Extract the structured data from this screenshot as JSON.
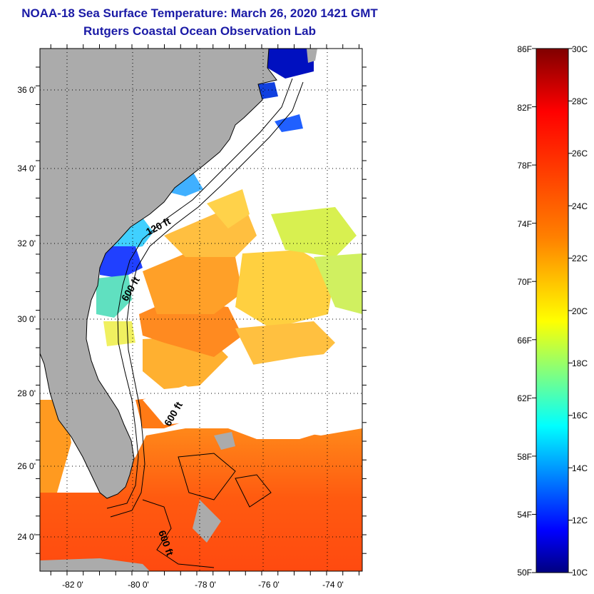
{
  "header": {
    "title": "NOAA-18 Sea Surface Temperature:  March 26, 2020 1421 GMT",
    "subtitle": "Rutgers Coastal Ocean Observation Lab"
  },
  "map": {
    "lat_labels": [
      "36 0'",
      "34 0'",
      "32 0'",
      "30 0'",
      "28 0'",
      "26 0'",
      "24 0'"
    ],
    "lon_labels": [
      "-82 0'",
      "-80 0'",
      "-78 0'",
      "-76 0'",
      "-74 0'"
    ],
    "contours": [
      "120 ft",
      "600 ft",
      "600 ft",
      "600 ft"
    ],
    "colors": {
      "land": "#ababab",
      "cloud": "#ffffff",
      "frame": "#000000"
    }
  },
  "colorbar": {
    "fahrenheit": [
      "86F",
      "82F",
      "78F",
      "74F",
      "70F",
      "66F",
      "62F",
      "58F",
      "54F",
      "50F"
    ],
    "celsius": [
      "30C",
      "28C",
      "26C",
      "24C",
      "22C",
      "20C",
      "18C",
      "16C",
      "14C",
      "12C",
      "10C"
    ],
    "range_f": [
      50,
      86
    ],
    "range_c": [
      10,
      30
    ],
    "colors": [
      "#800000",
      "#ff0000",
      "#ff8000",
      "#ffff00",
      "#80ff80",
      "#00ffff",
      "#0080ff",
      "#0000ff",
      "#000080"
    ]
  }
}
